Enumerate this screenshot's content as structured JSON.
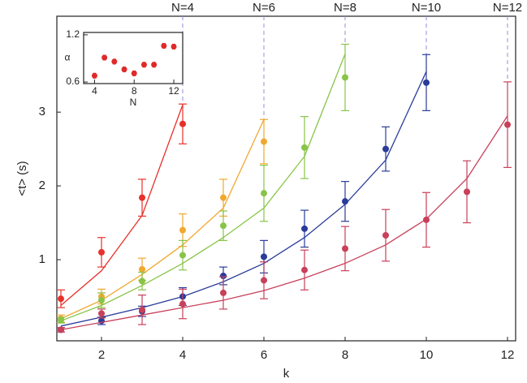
{
  "chart_data": [
    {
      "type": "scatter",
      "xlabel": "k",
      "ylabel": "<t> (s)",
      "xlim": [
        0.9,
        12.2
      ],
      "ylim": [
        -0.1,
        4.3
      ],
      "xticks": [
        2,
        4,
        6,
        8,
        10,
        12
      ],
      "yticks": [
        1,
        2,
        3
      ],
      "series": [
        {
          "name": "N=4",
          "color": "#e8302a",
          "x": [
            1,
            2,
            3,
            4
          ],
          "values": [
            0.47,
            1.1,
            1.84,
            2.84
          ],
          "errors": [
            0.12,
            0.2,
            0.25,
            0.27
          ],
          "fit": [
            0.38,
            0.85,
            1.6,
            3.1
          ]
        },
        {
          "name": "N=6",
          "color": "#f0a830",
          "x": [
            1,
            2,
            3,
            4,
            5,
            6
          ],
          "values": [
            0.2,
            0.5,
            0.87,
            1.4,
            1.84,
            2.6
          ],
          "errors": [
            0.05,
            0.1,
            0.15,
            0.22,
            0.25,
            0.3
          ],
          "fit": [
            0.2,
            0.45,
            0.8,
            1.2,
            1.7,
            2.9
          ]
        },
        {
          "name": "N=8",
          "color": "#88c448",
          "x": [
            1,
            2,
            3,
            4,
            5,
            6,
            7,
            8
          ],
          "values": [
            0.18,
            0.45,
            0.71,
            1.06,
            1.46,
            1.9,
            2.52,
            3.47
          ],
          "errors": [
            0.04,
            0.1,
            0.12,
            0.2,
            0.2,
            0.38,
            0.42,
            0.45
          ],
          "fit": [
            0.17,
            0.38,
            0.65,
            0.95,
            1.3,
            1.7,
            2.4,
            3.79
          ]
        },
        {
          "name": "N=10",
          "color": "#2a3c9a",
          "x": [
            1,
            2,
            3,
            4,
            5,
            6,
            7,
            8,
            9,
            10
          ],
          "values": [
            0.05,
            0.17,
            0.3,
            0.5,
            0.78,
            1.04,
            1.42,
            1.79,
            2.5,
            3.4
          ],
          "errors": [
            0.03,
            0.05,
            0.07,
            0.12,
            0.12,
            0.22,
            0.25,
            0.27,
            0.3,
            0.38
          ],
          "fit": [
            0.1,
            0.22,
            0.35,
            0.5,
            0.7,
            0.95,
            1.3,
            1.75,
            2.35,
            3.55
          ]
        },
        {
          "name": "N=12",
          "color": "#c8405a",
          "x": [
            1,
            2,
            3,
            4,
            5,
            6,
            7,
            8,
            9,
            10,
            11,
            12
          ],
          "values": [
            0.05,
            0.27,
            0.32,
            0.4,
            0.55,
            0.72,
            0.86,
            1.15,
            1.33,
            1.54,
            1.92,
            2.83
          ],
          "errors": [
            0.03,
            0.06,
            0.2,
            0.2,
            0.22,
            0.25,
            0.27,
            0.3,
            0.35,
            0.37,
            0.42,
            0.58
          ],
          "fit": [
            0.05,
            0.15,
            0.25,
            0.35,
            0.45,
            0.58,
            0.75,
            0.95,
            1.2,
            1.55,
            2.1,
            2.95
          ]
        }
      ]
    },
    {
      "type": "scatter",
      "xlabel": "N",
      "ylabel": "α",
      "xlim": [
        2.9,
        12.9
      ],
      "ylim": [
        0.58,
        1.23
      ],
      "xticks": [
        4,
        8,
        12
      ],
      "yticks": [
        0.6,
        1.2
      ],
      "series": [
        {
          "color": "#e02a2a",
          "x": [
            4,
            5,
            6,
            7,
            8,
            9,
            10,
            11,
            12
          ],
          "values": [
            0.68,
            0.91,
            0.86,
            0.76,
            0.71,
            0.82,
            0.82,
            1.06,
            1.05
          ],
          "errors": [
            0.03,
            0.03,
            0.03,
            0.03,
            0.03,
            0.03,
            0.03,
            0.03,
            0.03
          ]
        }
      ]
    }
  ]
}
